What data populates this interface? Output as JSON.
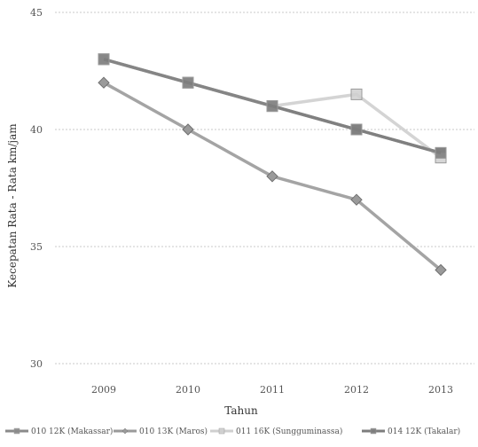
{
  "chart_data": {
    "type": "line",
    "title": "",
    "xlabel": "Tahun",
    "ylabel": "Kecepatan Rata - Rata km/jam",
    "categories": [
      "2009",
      "2010",
      "2011",
      "2012",
      "2013"
    ],
    "ylim": [
      30,
      45
    ],
    "yticks": [
      30,
      35,
      40,
      45
    ],
    "grid": true,
    "legend_position": "bottom",
    "series": [
      {
        "name": "010 12K (Makassar)",
        "color": "#8a8a8a",
        "marker": "square",
        "values": [
          43,
          42,
          41,
          40,
          39
        ]
      },
      {
        "name": "010 13K (Maros)",
        "color": "#9a9a9a",
        "marker": "diamond",
        "values": [
          42,
          40,
          38,
          37,
          34
        ]
      },
      {
        "name": "011 16K (Sungguminassa)",
        "color": "#cfcfcf",
        "marker": "square",
        "values": [
          43,
          42,
          41,
          41.5,
          38.8
        ]
      },
      {
        "name": "014 12K (Takalar)",
        "color": "#7d7d7d",
        "marker": "square",
        "values": [
          43,
          42,
          41,
          40,
          39
        ]
      }
    ]
  }
}
